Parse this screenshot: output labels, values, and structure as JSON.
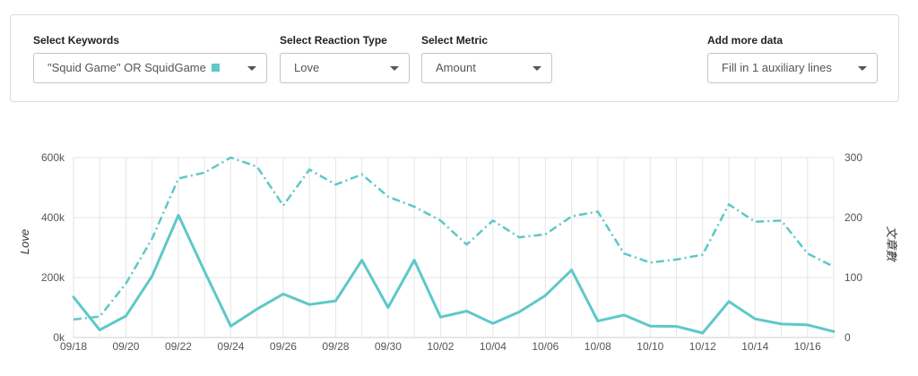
{
  "filters": {
    "keywords": {
      "label": "Select Keywords",
      "value": "\"Squid Game\" OR SquidGame",
      "swatch_color": "#5ec8c8"
    },
    "reaction": {
      "label": "Select Reaction Type",
      "value": "Love"
    },
    "metric": {
      "label": "Select Metric",
      "value": "Amount"
    },
    "more": {
      "label": "Add more data",
      "value": "Fill in 1 auxiliary lines"
    }
  },
  "chart_data": {
    "type": "line",
    "ylabel": "Love",
    "y2label": "文章數",
    "ylim": [
      0,
      600000
    ],
    "y2lim": [
      0,
      300
    ],
    "yticks": [
      "0k",
      "200k",
      "400k",
      "600k"
    ],
    "y2ticks": [
      "0",
      "100",
      "200",
      "300"
    ],
    "grid": true,
    "x": [
      "09/18",
      "09/19",
      "09/20",
      "09/21",
      "09/22",
      "09/23",
      "09/24",
      "09/25",
      "09/26",
      "09/27",
      "09/28",
      "09/29",
      "09/30",
      "10/01",
      "10/02",
      "10/03",
      "10/04",
      "10/05",
      "10/06",
      "10/07",
      "10/08",
      "10/09",
      "10/10",
      "10/11",
      "10/12",
      "10/13",
      "10/14",
      "10/15",
      "10/16",
      "10/17"
    ],
    "xtick_labels": [
      "09/18",
      "09/20",
      "09/22",
      "09/24",
      "09/26",
      "09/28",
      "09/30",
      "10/02",
      "10/04",
      "10/06",
      "10/08",
      "10/10",
      "10/12",
      "10/14",
      "10/16"
    ],
    "series": [
      {
        "axis": "left",
        "style": "solid",
        "color": "#5ec8c8",
        "values": [
          135000,
          25000,
          72000,
          205000,
          408000,
          220000,
          38000,
          95000,
          145000,
          110000,
          122000,
          258000,
          100000,
          258000,
          68000,
          88000,
          47000,
          85000,
          140000,
          225000,
          55000,
          75000,
          38000,
          37000,
          15000,
          120000,
          62000,
          45000,
          42000,
          20000
        ]
      },
      {
        "axis": "right",
        "style": "dashdot",
        "color": "#5ec8c8",
        "values": [
          30,
          35,
          90,
          165,
          265,
          275,
          300,
          285,
          220,
          280,
          255,
          272,
          235,
          218,
          195,
          155,
          195,
          167,
          172,
          202,
          210,
          140,
          125,
          130,
          138,
          222,
          193,
          195,
          140,
          118
        ]
      }
    ]
  }
}
